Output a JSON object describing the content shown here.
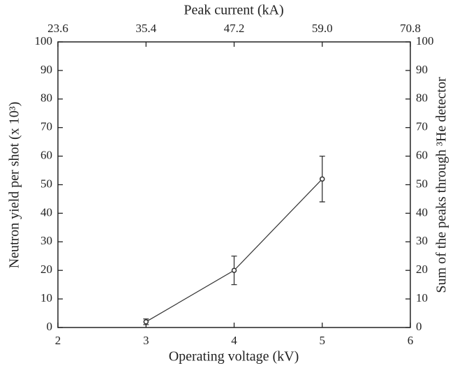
{
  "chart_data": {
    "type": "line",
    "x_label": "Operating voltage (kV)",
    "x2_label": "Peak current (kA)",
    "y_label": "Neutron yield per shot (x 10³)",
    "y2_label": "Sum of the peaks through ³He detector",
    "x": [
      3,
      4,
      5
    ],
    "series": [
      {
        "values": [
          2,
          20,
          52
        ],
        "errors": [
          1,
          5,
          8
        ],
        "color": "#333333"
      }
    ],
    "xlim": [
      2,
      6
    ],
    "xticks": [
      2,
      3,
      4,
      5,
      6
    ],
    "x2lim": [
      23.6,
      70.8
    ],
    "x2ticks": [
      23.6,
      35.4,
      47.2,
      {
        "value": 59,
        "label": "59.0"
      },
      70.8
    ],
    "ylim": [
      0,
      100
    ],
    "yticks": [
      0,
      10,
      20,
      30,
      40,
      50,
      60,
      70,
      80,
      90,
      100
    ],
    "y2lim": [
      0,
      100
    ],
    "y2ticks": [
      0,
      10,
      20,
      30,
      40,
      50,
      60,
      70,
      80,
      90,
      100
    ]
  }
}
